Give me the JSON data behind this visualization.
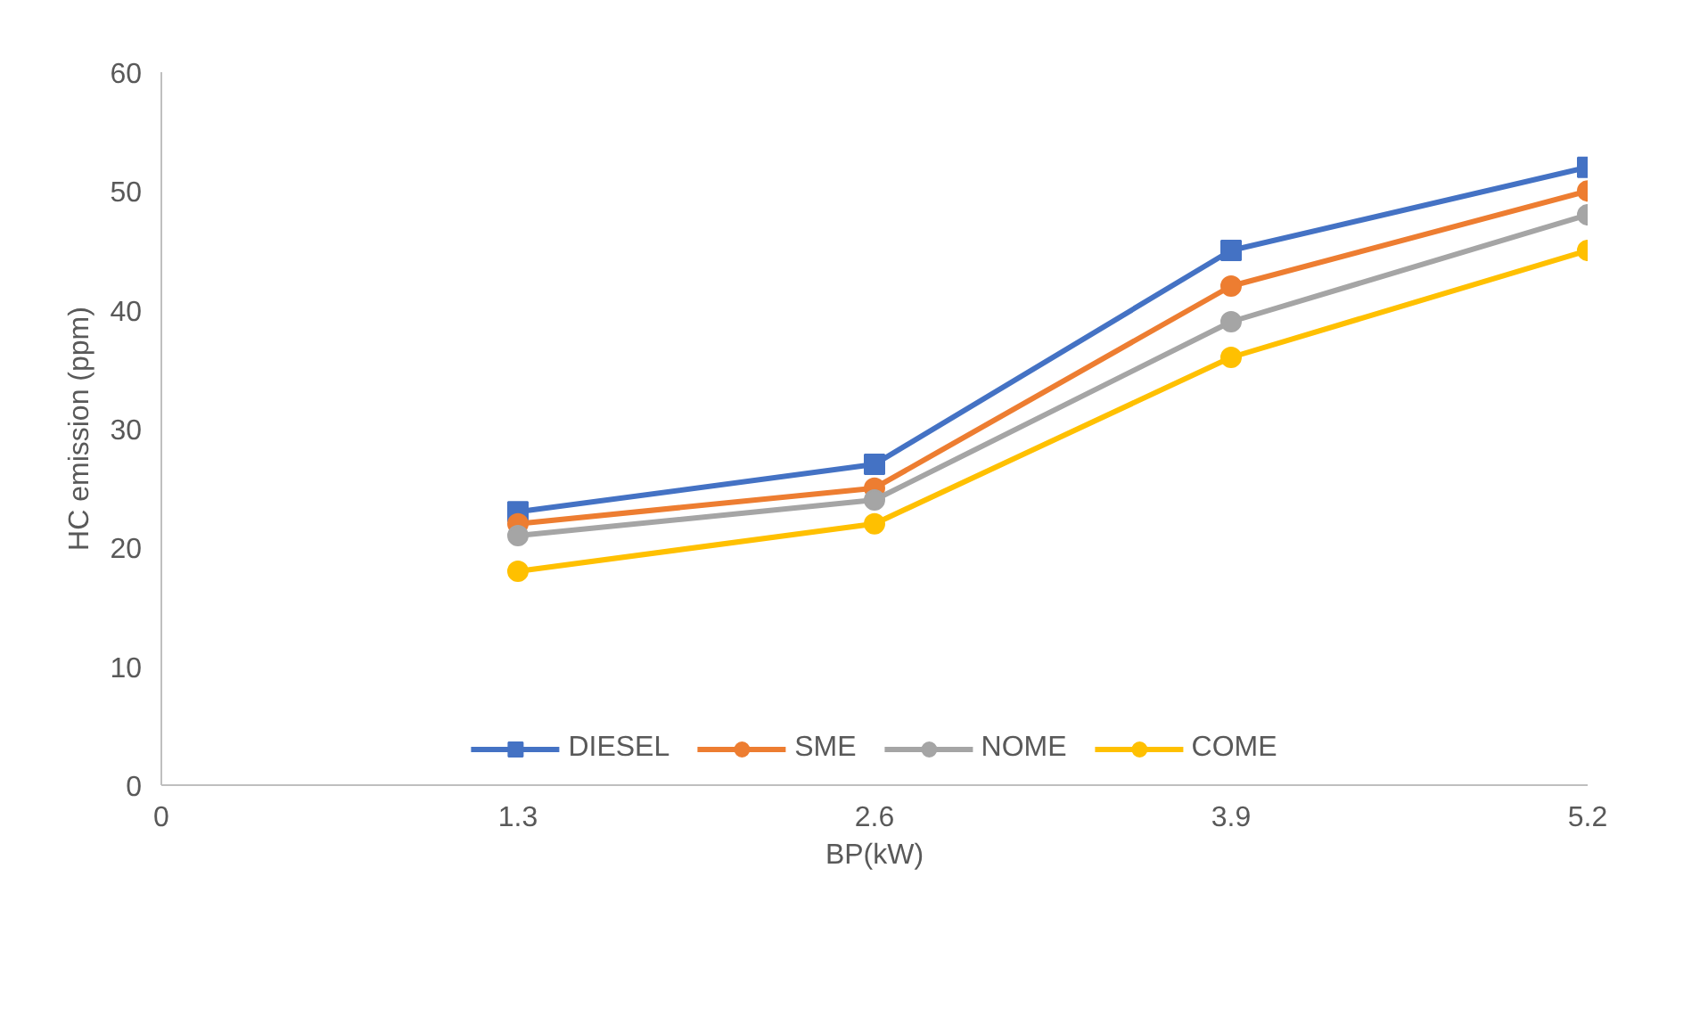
{
  "chart_data": {
    "type": "line",
    "xlabel": "BP(kW)",
    "ylabel": "HC emission (ppm)",
    "x": [
      1.3,
      2.6,
      3.9,
      5.2
    ],
    "xlim": [
      0,
      5.2
    ],
    "xticks": [
      0,
      1.3,
      2.6,
      3.9,
      5.2
    ],
    "ylim": [
      0,
      60
    ],
    "yticks": [
      0,
      10,
      20,
      30,
      40,
      50,
      60
    ],
    "grid": false,
    "legend": "bottom",
    "line_style": "solid",
    "series": [
      {
        "name": "DIESEL",
        "color": "#4472c4",
        "marker": "square",
        "values": [
          23,
          27,
          45,
          52
        ]
      },
      {
        "name": "SME",
        "color": "#ed7d31",
        "marker": "circle",
        "values": [
          22,
          25,
          42,
          50
        ]
      },
      {
        "name": "NOME",
        "color": "#a5a5a5",
        "marker": "circle",
        "values": [
          21,
          24,
          39,
          48
        ]
      },
      {
        "name": "COME",
        "color": "#ffc000",
        "marker": "circle",
        "values": [
          18,
          22,
          36,
          45
        ]
      }
    ]
  }
}
